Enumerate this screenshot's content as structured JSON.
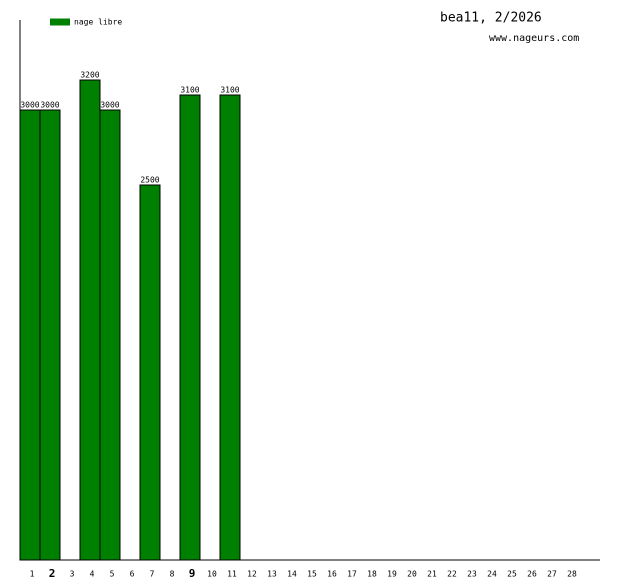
{
  "chart_data": {
    "type": "bar",
    "title": "bea11, 2/2026",
    "subtitle": "www.nageurs.com",
    "categories": [
      "1",
      "2",
      "3",
      "4",
      "5",
      "6",
      "7",
      "8",
      "9",
      "10",
      "11",
      "12",
      "13",
      "14",
      "15",
      "16",
      "17",
      "18",
      "19",
      "20",
      "21",
      "22",
      "23",
      "24",
      "25",
      "26",
      "27",
      "28"
    ],
    "emphasized_categories": [
      1,
      8
    ],
    "series": [
      {
        "name": "nage libre",
        "color": "#008000",
        "values": [
          3000,
          3000,
          null,
          3200,
          3000,
          null,
          2500,
          null,
          3100,
          null,
          3100,
          null,
          null,
          null,
          null,
          null,
          null,
          null,
          null,
          null,
          null,
          null,
          null,
          null,
          null,
          null,
          null,
          null
        ]
      }
    ],
    "ylim": [
      0,
      3600
    ],
    "grid": false
  }
}
